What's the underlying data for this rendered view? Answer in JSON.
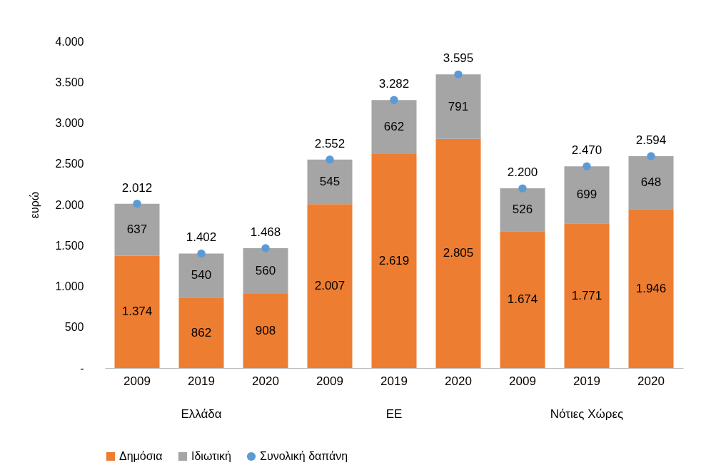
{
  "chart_data": {
    "type": "bar",
    "stacked": true,
    "ylabel": "ευρώ",
    "categories": [
      "2009",
      "2019",
      "2020",
      "2009",
      "2019",
      "2020",
      "2009",
      "2019",
      "2020"
    ],
    "annotations": [
      "Ελλάδα",
      "ΕΕ",
      "Νότιες Χώρες"
    ],
    "ylim": [
      0,
      4000
    ],
    "yticks": [
      {
        "value": 0,
        "label": "-"
      },
      500,
      {
        "value": 1000,
        "label": "1.000"
      },
      {
        "value": 1500,
        "label": "1.500"
      },
      {
        "value": 2000,
        "label": "2.000"
      },
      {
        "value": 2500,
        "label": "2.500"
      },
      {
        "value": 3000,
        "label": "3.000"
      },
      {
        "value": 3500,
        "label": "3.500"
      },
      {
        "value": 4000,
        "label": "4.000"
      }
    ],
    "series": [
      {
        "name": "Δημόσια",
        "color": "#ed7d31",
        "values": [
          1374,
          862,
          908,
          2007,
          2619,
          2805,
          1674,
          1771,
          1946
        ],
        "value_labels": [
          "1.374",
          "862",
          "908",
          "2.007",
          "2.619",
          "2.805",
          "1.674",
          "1.771",
          "1.946"
        ]
      },
      {
        "name": "Ιδιωτική",
        "color": "#a5a5a5",
        "values": [
          637,
          540,
          560,
          545,
          662,
          791,
          526,
          699,
          648
        ],
        "value_labels": [
          "637",
          "540",
          "560",
          "545",
          "662",
          "791",
          "526",
          "699",
          "648"
        ]
      },
      {
        "name": "Συνολική δαπάνη",
        "type": "scatter",
        "color": "#5b9bd5",
        "values": [
          2012,
          1402,
          1468,
          2552,
          3282,
          3595,
          2200,
          2470,
          2594
        ],
        "value_labels": [
          "2.012",
          "1.402",
          "1.468",
          "2.552",
          "3.282",
          "3.595",
          "2.200",
          "2.470",
          "2.594"
        ]
      }
    ],
    "grid": false,
    "legend": "bottom",
    "marker": "circle"
  }
}
